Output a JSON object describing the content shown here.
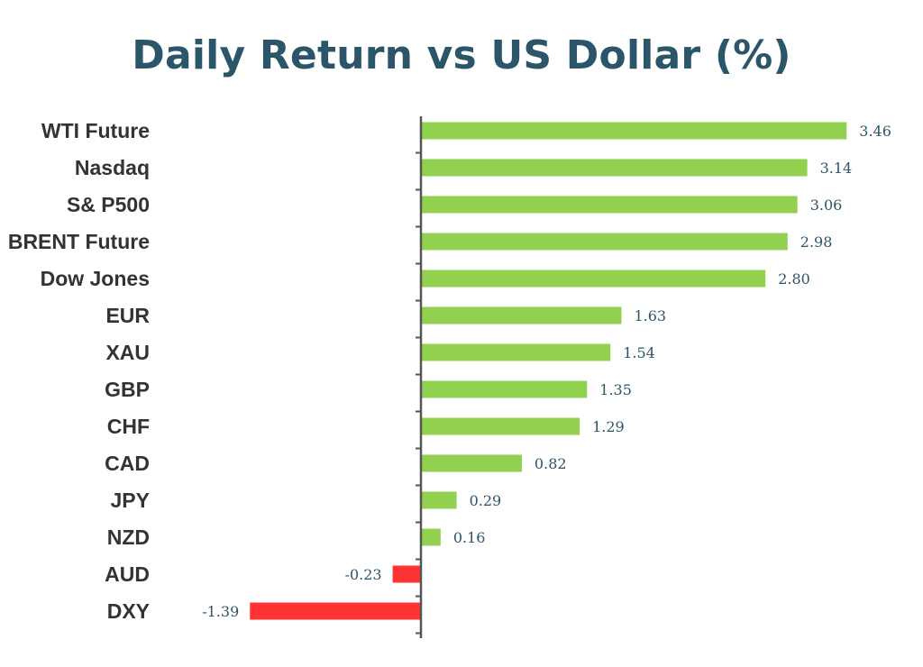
{
  "colors": {
    "title": "#2B5568",
    "positive": "#92D050",
    "negative": "#FF3333",
    "axis": "#555555",
    "category_text": "#333333",
    "value_text": "#2B5568"
  },
  "chart_data": {
    "type": "bar",
    "orientation": "horizontal",
    "title": "Daily Return vs US Dollar (%)",
    "xlabel": "",
    "ylabel": "",
    "categories": [
      "WTI Future",
      "Nasdaq",
      "S& P500",
      "BRENT Future",
      "Dow Jones",
      "EUR",
      "XAU",
      "GBP",
      "CHF",
      "CAD",
      "JPY",
      "NZD",
      "AUD",
      "DXY"
    ],
    "values": [
      3.46,
      3.14,
      3.06,
      2.98,
      2.8,
      1.63,
      1.54,
      1.35,
      1.29,
      0.82,
      0.29,
      0.16,
      -0.23,
      -1.39
    ],
    "value_labels": [
      "3.46",
      "3.14",
      "3.06",
      "2.98",
      "2.80",
      "1.63",
      "1.54",
      "1.35",
      "1.29",
      "0.82",
      "0.29",
      "0.16",
      "-0.23",
      "-1.39"
    ],
    "grid": false,
    "legend": "none"
  }
}
